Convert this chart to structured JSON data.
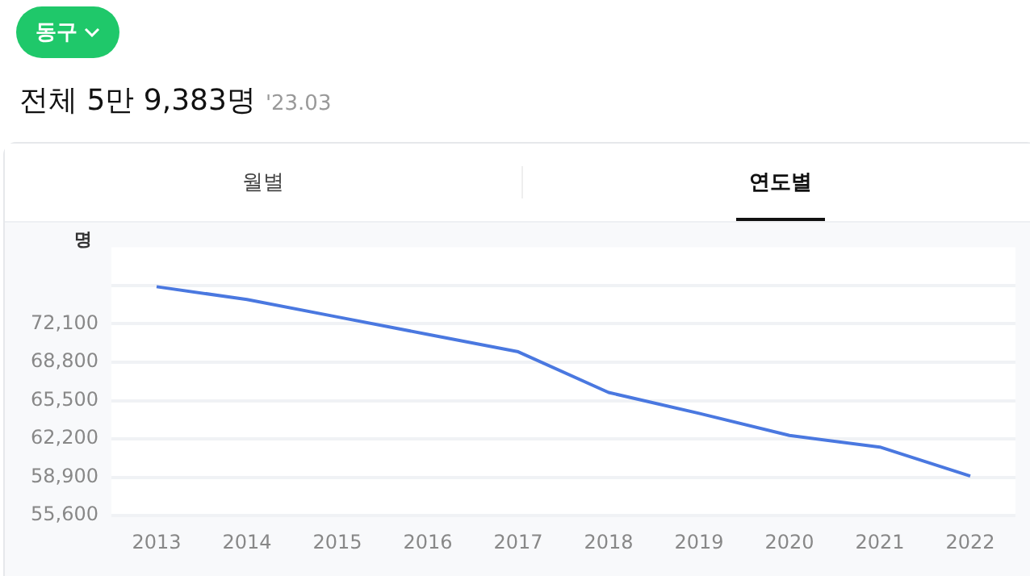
{
  "chart_data": {
    "type": "line",
    "title": "전체 5만 9,383명",
    "subtitle": "'23.03",
    "ylabel": "명",
    "annotations": [
      "동구",
      "월별",
      "연도별"
    ],
    "categories": [
      "2013",
      "2014",
      "2015",
      "2016",
      "2017",
      "2018",
      "2019",
      "2020",
      "2021",
      "2022"
    ],
    "series": [
      {
        "color": "#4a78e0",
        "values": [
          75300,
          74200,
          72700,
          71200,
          69700,
          66200,
          64400,
          62500,
          61500,
          59000
        ]
      }
    ],
    "ylim": [
      55600,
      78700
    ],
    "yticks": [
      {
        "value": 55600,
        "label": "55,600"
      },
      {
        "value": 58900,
        "label": "58,900"
      },
      {
        "value": 62200,
        "label": "62,200"
      },
      {
        "value": 65500,
        "label": "65,500"
      },
      {
        "value": 68800,
        "label": "68,800"
      },
      {
        "value": 72100,
        "label": "72,100"
      },
      {
        "value": 75400,
        "label": null
      }
    ],
    "grid": "y",
    "legend": false,
    "marker": "none",
    "line_style": "solid"
  }
}
